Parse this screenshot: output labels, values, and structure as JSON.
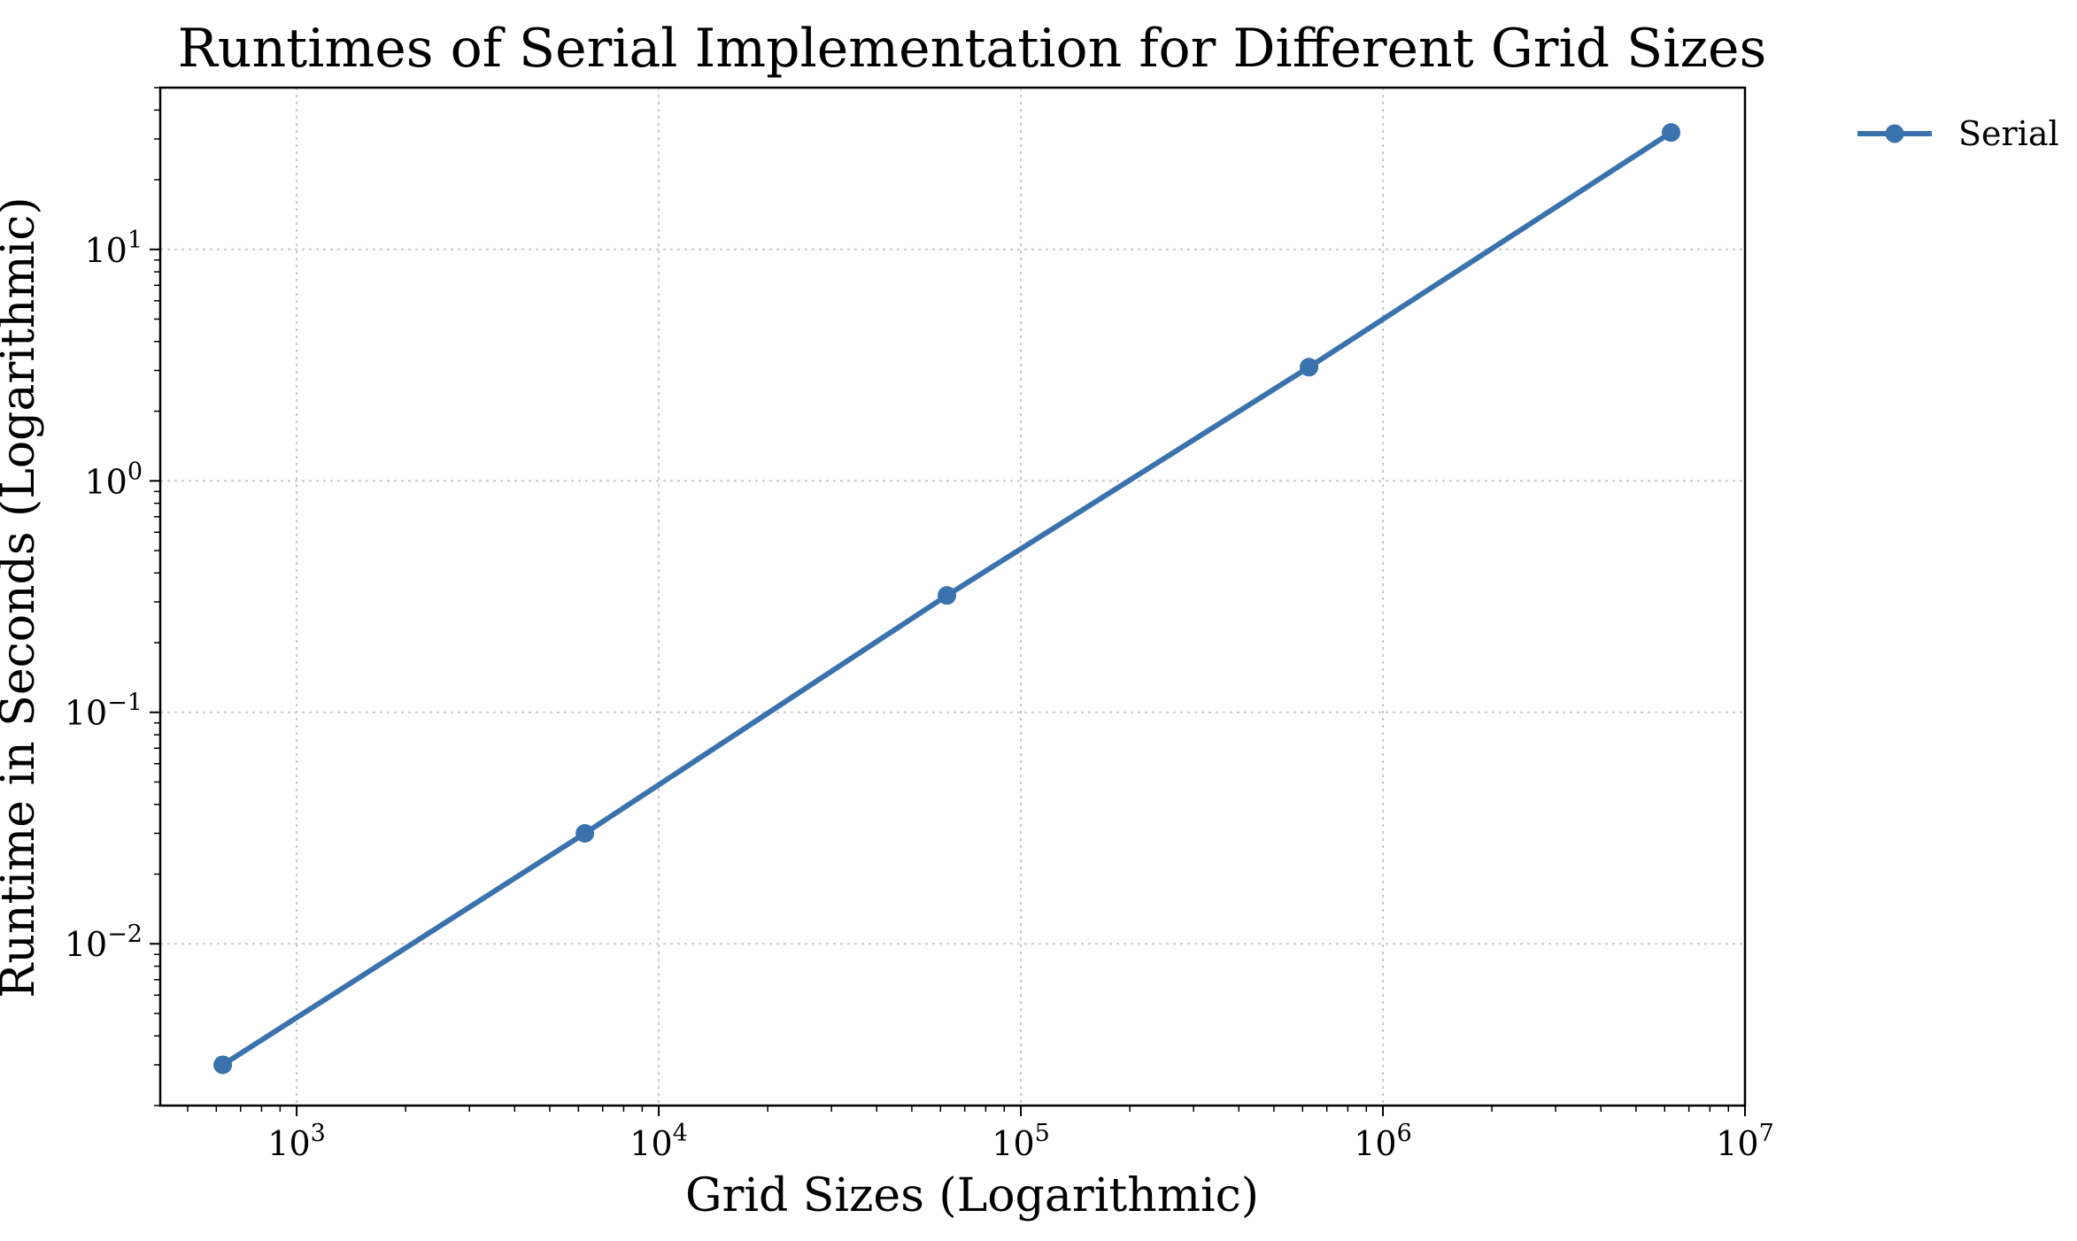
{
  "chart_data": {
    "type": "line",
    "title": "Runtimes of Serial Implementation for Different Grid Sizes",
    "xlabel": "Grid Sizes (Logarithmic)",
    "ylabel": "Runtime in Seconds (Logarithmic)",
    "xscale": "log",
    "yscale": "log",
    "xlim": [
      420,
      10000000
    ],
    "ylim": [
      0.002,
      50
    ],
    "grid": true,
    "legend_position": "outside-top-right",
    "x_ticks": [
      {
        "base": "10",
        "exp": "3"
      },
      {
        "base": "10",
        "exp": "4"
      },
      {
        "base": "10",
        "exp": "5"
      },
      {
        "base": "10",
        "exp": "6"
      },
      {
        "base": "10",
        "exp": "7"
      }
    ],
    "y_ticks": [
      {
        "base": "10",
        "exp": "−2"
      },
      {
        "base": "10",
        "exp": "−1"
      },
      {
        "base": "10",
        "exp": "0"
      },
      {
        "base": "10",
        "exp": "1"
      }
    ],
    "series": [
      {
        "name": "Serial",
        "color": "#3a72ae",
        "marker": "circle",
        "x": [
          625,
          6250,
          62500,
          625000,
          6250000
        ],
        "y": [
          0.003,
          0.03,
          0.32,
          3.1,
          32
        ]
      }
    ]
  }
}
